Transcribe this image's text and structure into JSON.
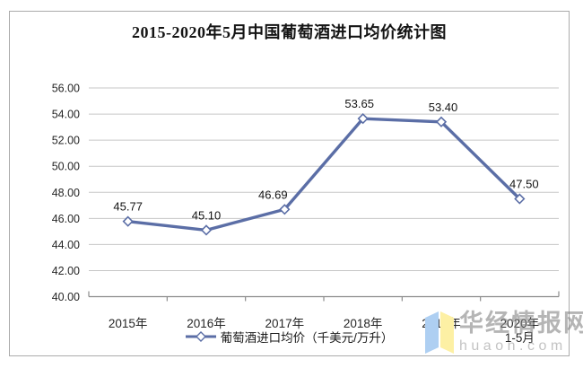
{
  "window": {
    "background": "#ffffff",
    "frame_border_color": "#ababab"
  },
  "chart_data": {
    "type": "line",
    "title": "2015-2020年5月中国葡萄酒进口均价统计图",
    "categories": [
      "2015年",
      "2016年",
      "2017年",
      "2018年",
      "2019年",
      "2020年\n1-5月"
    ],
    "series": [
      {
        "name": "葡萄酒进口均价（千美元/万升）",
        "values": [
          45.77,
          45.1,
          46.69,
          53.65,
          53.4,
          47.5
        ]
      }
    ],
    "data_labels": [
      "45.77",
      "45.10",
      "46.69",
      "53.65",
      "53.40",
      "47.50"
    ],
    "xlabel": "",
    "ylabel": "",
    "ylim": [
      40,
      56
    ],
    "ytick_step": 2,
    "ytick_labels": [
      "40.00",
      "42.00",
      "44.00",
      "46.00",
      "48.00",
      "50.00",
      "52.00",
      "54.00",
      "56.00"
    ],
    "grid": true,
    "legend_position": "bottom",
    "line_color": "#5b6ea6",
    "marker": "diamond-white-fill",
    "marker_fill": "#ffffff",
    "gridline_color": "#c7c7c7",
    "axis_color": "#8c8c8c",
    "tick_label_color": "#262626",
    "data_label_color": "#141414"
  },
  "watermark": {
    "site_name": "华经情报网",
    "domain": "huaon.com",
    "book_icon_blue": "#aecff2",
    "book_icon_yellow": "#fdf0a4"
  }
}
